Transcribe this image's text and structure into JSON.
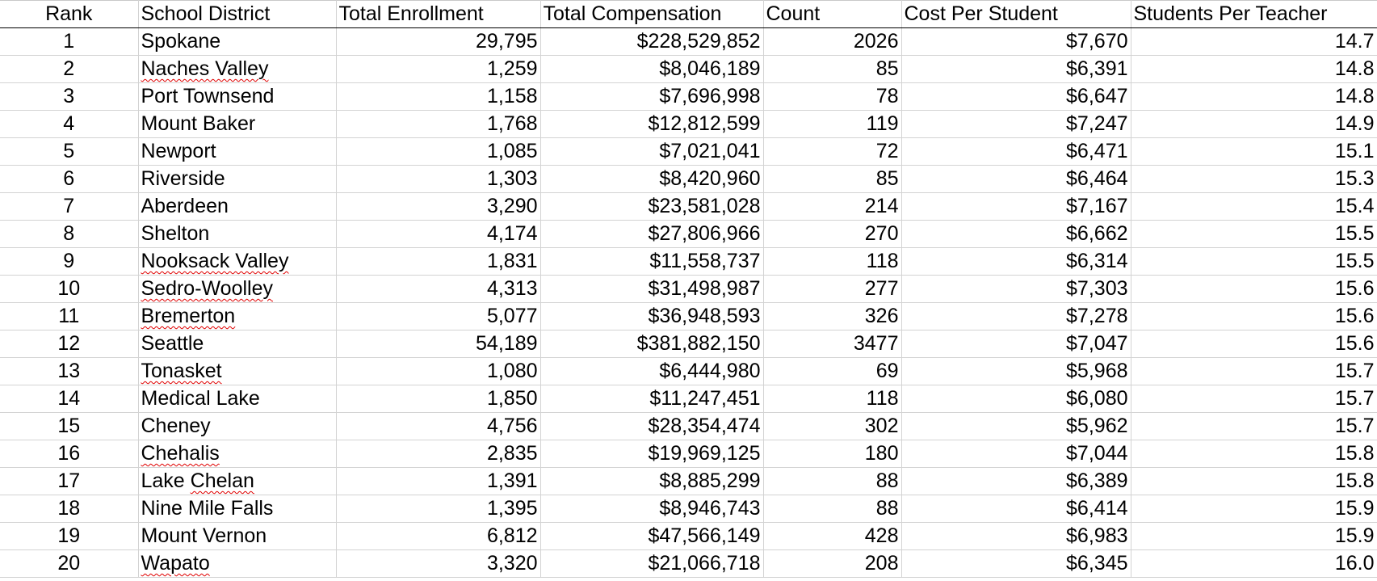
{
  "columns": [
    "Rank",
    "School District",
    "Total Enrollment",
    "Total Compensation",
    "Count",
    "Cost Per Student",
    "Students Per Teacher"
  ],
  "rows": [
    {
      "rank": "1",
      "district": "Spokane",
      "enrollment": "29,795",
      "compensation": "$228,529,852",
      "count": "2026",
      "cost": "$7,670",
      "spt": "14.7"
    },
    {
      "rank": "2",
      "district": "Naches Valley",
      "enrollment": "1,259",
      "compensation": "$8,046,189",
      "count": "85",
      "cost": "$6,391",
      "spt": "14.8"
    },
    {
      "rank": "3",
      "district": "Port Townsend",
      "enrollment": "1,158",
      "compensation": "$7,696,998",
      "count": "78",
      "cost": "$6,647",
      "spt": "14.8"
    },
    {
      "rank": "4",
      "district": "Mount Baker",
      "enrollment": "1,768",
      "compensation": "$12,812,599",
      "count": "119",
      "cost": "$7,247",
      "spt": "14.9"
    },
    {
      "rank": "5",
      "district": "Newport",
      "enrollment": "1,085",
      "compensation": "$7,021,041",
      "count": "72",
      "cost": "$6,471",
      "spt": "15.1"
    },
    {
      "rank": "6",
      "district": "Riverside",
      "enrollment": "1,303",
      "compensation": "$8,420,960",
      "count": "85",
      "cost": "$6,464",
      "spt": "15.3"
    },
    {
      "rank": "7",
      "district": "Aberdeen",
      "enrollment": "3,290",
      "compensation": "$23,581,028",
      "count": "214",
      "cost": "$7,167",
      "spt": "15.4"
    },
    {
      "rank": "8",
      "district": "Shelton",
      "enrollment": "4,174",
      "compensation": "$27,806,966",
      "count": "270",
      "cost": "$6,662",
      "spt": "15.5"
    },
    {
      "rank": "9",
      "district": "Nooksack Valley",
      "enrollment": "1,831",
      "compensation": "$11,558,737",
      "count": "118",
      "cost": "$6,314",
      "spt": "15.5"
    },
    {
      "rank": "10",
      "district": "Sedro-Woolley",
      "enrollment": "4,313",
      "compensation": "$31,498,987",
      "count": "277",
      "cost": "$7,303",
      "spt": "15.6"
    },
    {
      "rank": "11",
      "district": "Bremerton",
      "enrollment": "5,077",
      "compensation": "$36,948,593",
      "count": "326",
      "cost": "$7,278",
      "spt": "15.6"
    },
    {
      "rank": "12",
      "district": "Seattle",
      "enrollment": "54,189",
      "compensation": "$381,882,150",
      "count": "3477",
      "cost": "$7,047",
      "spt": "15.6"
    },
    {
      "rank": "13",
      "district": "Tonasket",
      "enrollment": "1,080",
      "compensation": "$6,444,980",
      "count": "69",
      "cost": "$5,968",
      "spt": "15.7"
    },
    {
      "rank": "14",
      "district": "Medical Lake",
      "enrollment": "1,850",
      "compensation": "$11,247,451",
      "count": "118",
      "cost": "$6,080",
      "spt": "15.7"
    },
    {
      "rank": "15",
      "district": "Cheney",
      "enrollment": "4,756",
      "compensation": "$28,354,474",
      "count": "302",
      "cost": "$5,962",
      "spt": "15.7"
    },
    {
      "rank": "16",
      "district": "Chehalis",
      "enrollment": "2,835",
      "compensation": "$19,969,125",
      "count": "180",
      "cost": "$7,044",
      "spt": "15.8"
    },
    {
      "rank": "17",
      "district": "Lake Chelan",
      "enrollment": "1,391",
      "compensation": "$8,885,299",
      "count": "88",
      "cost": "$6,389",
      "spt": "15.8"
    },
    {
      "rank": "18",
      "district": "Nine Mile Falls",
      "enrollment": "1,395",
      "compensation": "$8,946,743",
      "count": "88",
      "cost": "$6,414",
      "spt": "15.9"
    },
    {
      "rank": "19",
      "district": "Mount Vernon",
      "enrollment": "6,812",
      "compensation": "$47,566,149",
      "count": "428",
      "cost": "$6,983",
      "spt": "15.9"
    },
    {
      "rank": "20",
      "district": "Wapato",
      "enrollment": "3,320",
      "compensation": "$21,066,718",
      "count": "208",
      "cost": "$6,345",
      "spt": "16.0"
    }
  ],
  "colors": {
    "gridline": "#d3d3d3",
    "header_rule": "#000000",
    "spellcheck_underline": "#e00000",
    "text": "#000000",
    "background": "#ffffff"
  }
}
